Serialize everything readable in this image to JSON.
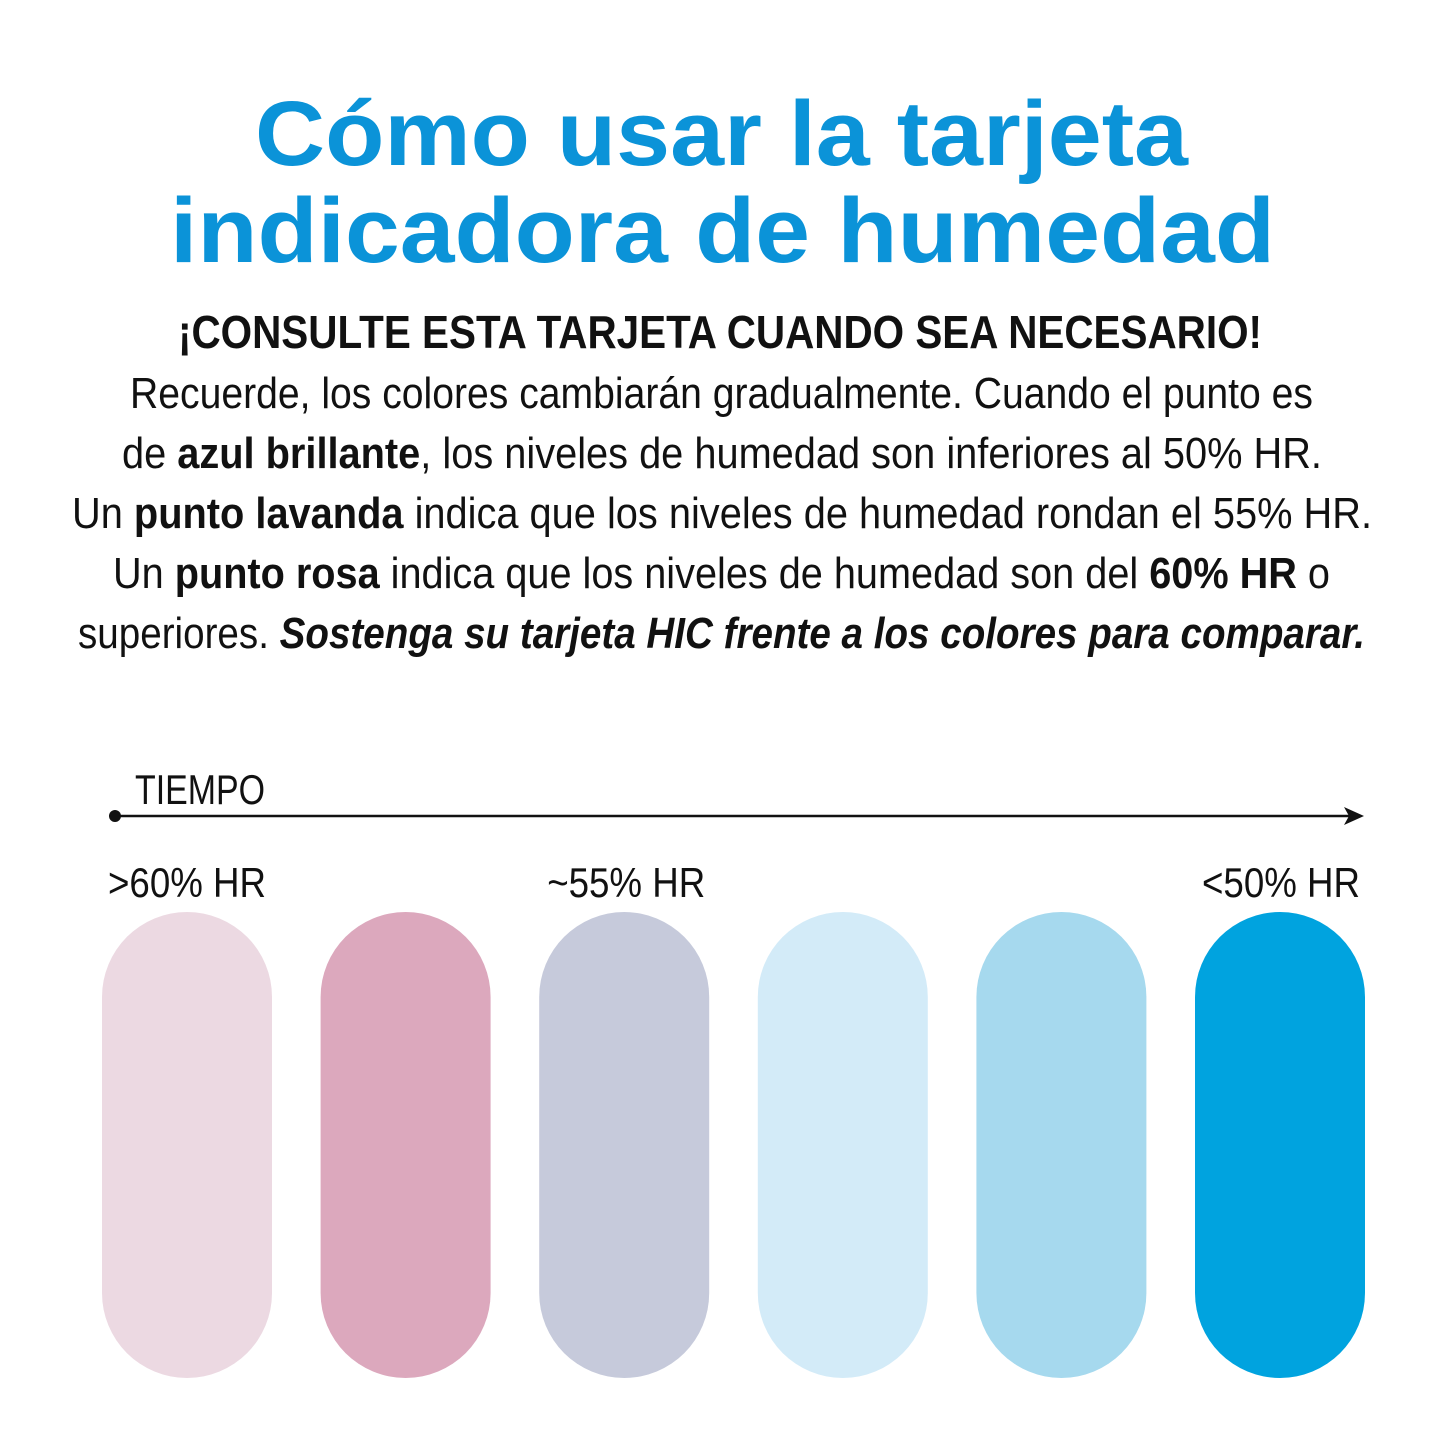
{
  "header": {
    "title": [
      "Cómo usar la tarjeta",
      "indicadora de humedad"
    ],
    "subtitle": "¡CONSULTE ESTA TARJETA CUANDO SEA NECESARIO!"
  },
  "body": {
    "lines": [
      [
        {
          "text": "Recuerde, los colores cambiarán gradualmente. Cuando el punto es",
          "style": "normal"
        }
      ],
      [
        {
          "text": "de ",
          "style": "normal"
        },
        {
          "text": "azul brillante",
          "style": "bold"
        },
        {
          "text": ", los niveles de humedad son inferiores al 50% HR.",
          "style": "normal"
        }
      ],
      [
        {
          "text": "Un ",
          "style": "normal"
        },
        {
          "text": "punto lavanda",
          "style": "bold"
        },
        {
          "text": " indica que los niveles de humedad rondan el 55% HR.",
          "style": "normal"
        }
      ],
      [
        {
          "text": "Un ",
          "style": "normal"
        },
        {
          "text": "punto rosa",
          "style": "bold"
        },
        {
          "text": " indica que los niveles de humedad son del ",
          "style": "normal"
        },
        {
          "text": "60% HR",
          "style": "bold"
        },
        {
          "text": " o",
          "style": "normal"
        }
      ],
      [
        {
          "text": "superiores. ",
          "style": "normal"
        },
        {
          "text": "Sostenga su tarjeta HIC frente a los colores para comparar.",
          "style": "bold-italic"
        }
      ]
    ]
  },
  "timeline": {
    "label": "TIEMPO",
    "swatches": [
      {
        "color": "#ecd9e2",
        "label": ">60% HR"
      },
      {
        "color": "#dca8bd",
        "label": null
      },
      {
        "color": "#c6cadb",
        "label": "~55% HR"
      },
      {
        "color": "#d3ebf8",
        "label": null
      },
      {
        "color": "#a6d9ee",
        "label": null
      },
      {
        "color": "#00a3df",
        "label": "<50% HR"
      }
    ]
  }
}
